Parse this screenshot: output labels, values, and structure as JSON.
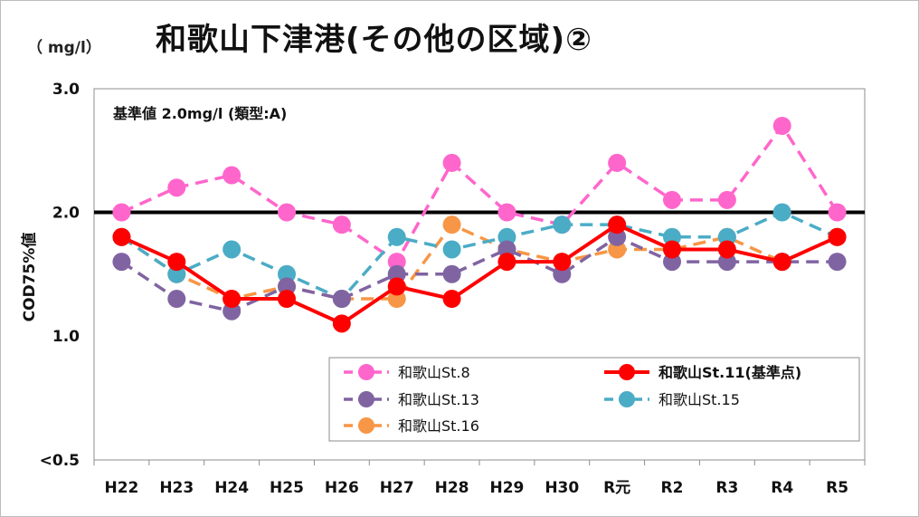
{
  "title": "和歌山下津港(その他の区域)②",
  "unit": "（ mg/l）",
  "standard_note": "基準値  2.0mg/l (類型:A)",
  "chart_data": {
    "type": "line",
    "categories": [
      "H22",
      "H23",
      "H24",
      "H25",
      "H26",
      "H27",
      "H28",
      "H29",
      "H30",
      "R元",
      "R2",
      "R3",
      "R4",
      "R5"
    ],
    "ylabel": "COD75%値",
    "yticks": [
      "<0.5",
      "1.0",
      "2.0",
      "3.0"
    ],
    "ylim": [
      0.5,
      3.0
    ],
    "yaxis_note": "axis broken between 0.5 and 1.0",
    "standard_value": 2.0,
    "legend_position": "bottom-right inside plot",
    "series": [
      {
        "name": "和歌山St.8",
        "color": "#ff66cc",
        "style": "dashed",
        "values": [
          2.0,
          2.2,
          2.3,
          2.0,
          1.9,
          1.6,
          2.4,
          2.0,
          1.9,
          2.4,
          2.1,
          2.1,
          2.7,
          2.0
        ]
      },
      {
        "name": "和歌山St.11(基準点)",
        "color": "#ff0000",
        "style": "solid",
        "values": [
          1.8,
          1.6,
          1.3,
          1.3,
          1.1,
          1.4,
          1.3,
          1.6,
          1.6,
          1.9,
          1.7,
          1.7,
          1.6,
          1.8
        ]
      },
      {
        "name": "和歌山St.13",
        "color": "#8064a2",
        "style": "dashed",
        "values": [
          1.6,
          1.3,
          1.2,
          1.4,
          1.3,
          1.5,
          1.5,
          1.7,
          1.5,
          1.8,
          1.6,
          1.6,
          1.6,
          1.6
        ]
      },
      {
        "name": "和歌山St.15",
        "color": "#4bacc6",
        "style": "dashed",
        "values": [
          1.8,
          1.5,
          1.7,
          1.5,
          1.3,
          1.8,
          1.7,
          1.8,
          1.9,
          1.9,
          1.8,
          1.8,
          2.0,
          1.8
        ]
      },
      {
        "name": "和歌山St.16",
        "color": "#f79646",
        "style": "dashed",
        "values": [
          1.8,
          1.5,
          1.3,
          1.4,
          1.3,
          1.3,
          1.9,
          1.7,
          1.6,
          1.7,
          1.7,
          1.8,
          1.6,
          1.8
        ]
      }
    ]
  }
}
